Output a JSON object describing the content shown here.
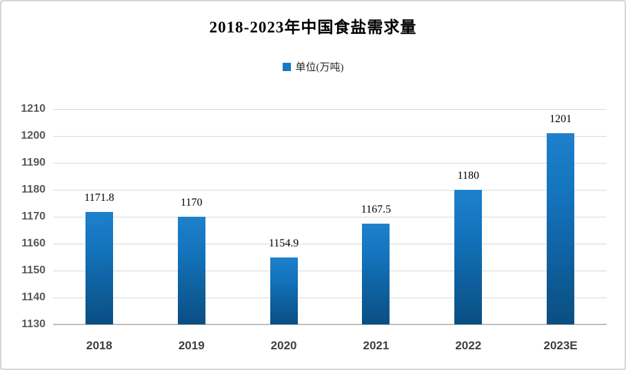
{
  "title": "2018-2023年中国食盐需求量",
  "legend": {
    "label": "单位(万吨)",
    "swatch_color": "#1779c4"
  },
  "chart_data": {
    "type": "bar",
    "title": "2018-2023年中国食盐需求量",
    "categories": [
      "2018",
      "2019",
      "2020",
      "2021",
      "2022",
      "2023E"
    ],
    "values": [
      1171.8,
      1170,
      1154.9,
      1167.5,
      1180,
      1201
    ],
    "value_labels": [
      "1171.8",
      "1170",
      "1154.9",
      "1167.5",
      "1180",
      "1201"
    ],
    "series_name": "单位(万吨)",
    "xlabel": "",
    "ylabel": "",
    "ylim": [
      1130,
      1210
    ],
    "yticks": [
      1130,
      1140,
      1150,
      1160,
      1170,
      1180,
      1190,
      1200,
      1210
    ],
    "grid": true,
    "legend_position": "top-center",
    "bar_color_top": "#1e80cc",
    "bar_color_bottom": "#0a4e82",
    "gridline_color": "#d9d9d9",
    "tick_label_color": "#595959"
  }
}
